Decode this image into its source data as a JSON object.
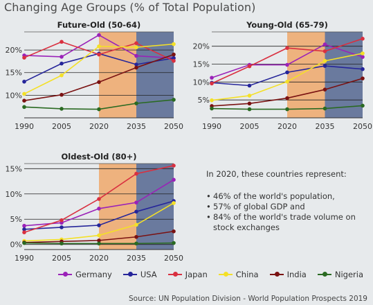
{
  "title": "Changing Age Groups (% of Total Population)",
  "colors": {
    "Germany": "#9a22b8",
    "USA": "#25259a",
    "Japan": "#d93040",
    "China": "#f4e027",
    "India": "#7a1212",
    "Nigeria": "#2a6a22",
    "band_2020_2035": "#eeb27e",
    "band_2035_2050": "#6a7a9e",
    "grid": "#222222"
  },
  "chart_data": [
    {
      "type": "line",
      "title": "Future-Old (50-64)",
      "x": [
        1990,
        2005,
        2020,
        2035,
        2050
      ],
      "ylim": [
        5,
        24
      ],
      "yticks": [
        10,
        15,
        20
      ],
      "ytick_labels": [
        "10%",
        "15%",
        "20%"
      ],
      "shaded": [
        [
          2020,
          2035
        ],
        [
          2035,
          2050
        ]
      ],
      "series": [
        {
          "name": "Germany",
          "values": [
            18.8,
            18.5,
            23.3,
            18.7,
            18.2
          ]
        },
        {
          "name": "USA",
          "values": [
            13.0,
            17.0,
            19.2,
            16.8,
            18.2
          ]
        },
        {
          "name": "Japan",
          "values": [
            18.3,
            21.8,
            19.0,
            21.5,
            17.6
          ]
        },
        {
          "name": "China",
          "values": [
            10.3,
            14.4,
            20.8,
            20.6,
            21.3
          ]
        },
        {
          "name": "India",
          "values": [
            8.8,
            10.1,
            12.9,
            16.1,
            19.0
          ]
        },
        {
          "name": "Nigeria",
          "values": [
            7.4,
            7.0,
            6.9,
            8.2,
            9.0
          ]
        }
      ]
    },
    {
      "type": "line",
      "title": "Young-Old (65-79)",
      "x": [
        1990,
        2005,
        2020,
        2035,
        2050
      ],
      "ylim": [
        0,
        24
      ],
      "yticks": [
        5,
        10,
        15,
        20
      ],
      "ytick_labels": [
        "5%",
        "10%",
        "15%",
        "20%"
      ],
      "shaded": [
        [
          2020,
          2035
        ],
        [
          2035,
          2050
        ]
      ],
      "series": [
        {
          "name": "Germany",
          "values": [
            11.2,
            14.8,
            14.8,
            20.5,
            17.0
          ]
        },
        {
          "name": "USA",
          "values": [
            9.8,
            9.0,
            12.7,
            14.5,
            13.6
          ]
        },
        {
          "name": "Japan",
          "values": [
            9.6,
            14.4,
            19.5,
            18.6,
            22.1
          ]
        },
        {
          "name": "China",
          "values": [
            4.9,
            6.2,
            10.1,
            15.9,
            18.0
          ]
        },
        {
          "name": "India",
          "values": [
            3.3,
            4.0,
            5.5,
            7.9,
            11.0
          ]
        },
        {
          "name": "Nigeria",
          "values": [
            2.6,
            2.4,
            2.4,
            2.6,
            3.4
          ]
        }
      ]
    },
    {
      "type": "line",
      "title": "Oldest-Old (80+)",
      "x": [
        1990,
        2005,
        2020,
        2035,
        2050
      ],
      "ylim": [
        -1,
        16
      ],
      "yticks": [
        0,
        5,
        10,
        15
      ],
      "ytick_labels": [
        "0%",
        "5%",
        "10%",
        "15%"
      ],
      "shaded": [
        [
          2020,
          2035
        ],
        [
          2035,
          2050
        ]
      ],
      "series": [
        {
          "name": "Germany",
          "values": [
            3.7,
            4.3,
            7.1,
            8.3,
            12.8
          ]
        },
        {
          "name": "USA",
          "values": [
            3.0,
            3.4,
            3.8,
            6.5,
            8.6
          ]
        },
        {
          "name": "Japan",
          "values": [
            2.4,
            4.8,
            9.0,
            14.0,
            15.6
          ]
        },
        {
          "name": "China",
          "values": [
            0.7,
            1.0,
            1.8,
            3.9,
            8.2
          ]
        },
        {
          "name": "India",
          "values": [
            0.4,
            0.6,
            0.8,
            1.5,
            2.6
          ]
        },
        {
          "name": "Nigeria",
          "values": [
            0.3,
            0.2,
            0.2,
            0.2,
            0.3
          ]
        }
      ]
    }
  ],
  "info": {
    "intro": "In 2020, these countries represent:",
    "bullets": [
      "46% of the world's population,",
      "57% of global GDP and",
      "84% of the world's trade volume on stock exchanges"
    ]
  },
  "legend": [
    "Germany",
    "USA",
    "Japan",
    "China",
    "India",
    "Nigeria"
  ],
  "source": "Source: UN Population Division - World Population Prospects 2019"
}
